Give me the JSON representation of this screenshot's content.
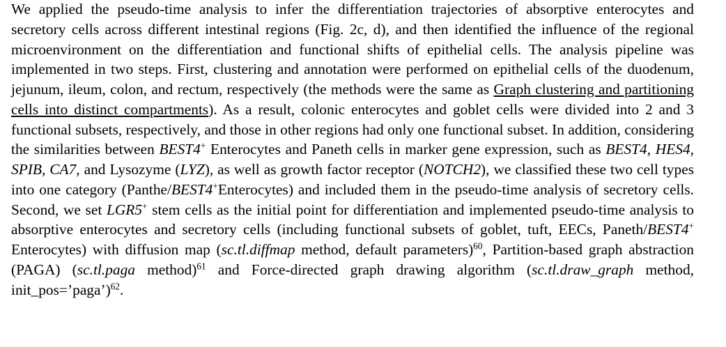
{
  "paragraph": {
    "runs": [
      {
        "text": "We applied the pseudo-time analysis to infer the differentiation trajectories of absorptive enterocytes and secretory cells across different intestinal regions (Fig. 2c, d), and then identified the influence of the regional microenvironment on the differentiation and functional shifts of epithelial cells. The analysis pipeline was implemented in two steps. First, clustering and annotation were performed on epithelial cells of the duodenum, jejunum, ileum, colon, and rectum, respectively (the methods were the same as "
      },
      {
        "text": "Graph clustering and partitioning cells into distinct compartments",
        "format": "link"
      },
      {
        "text": "). As a result, colonic enterocytes and goblet cells were divided into 2 and 3 functional subsets, respectively, and those in other regions had only one functional subset. In addition, considering the similarities between "
      },
      {
        "text": "BEST4",
        "format": "italic"
      },
      {
        "text": "+",
        "format": "sup"
      },
      {
        "text": " Enterocytes and Paneth cells in marker gene expression, such as "
      },
      {
        "text": "BEST4",
        "format": "italic"
      },
      {
        "text": ", "
      },
      {
        "text": "HES4",
        "format": "italic"
      },
      {
        "text": ", "
      },
      {
        "text": "SPIB",
        "format": "italic"
      },
      {
        "text": ", "
      },
      {
        "text": "CA7",
        "format": "italic"
      },
      {
        "text": ", and Lysozyme ("
      },
      {
        "text": "LYZ",
        "format": "italic"
      },
      {
        "text": "), as well as growth factor receptor ("
      },
      {
        "text": "NOTCH2",
        "format": "italic"
      },
      {
        "text": "), we classified these two cell types into one category (Panthe/"
      },
      {
        "text": "BEST4",
        "format": "italic"
      },
      {
        "text": "+",
        "format": "sup"
      },
      {
        "text": "Enterocytes) and included them in the pseudo-time analysis of secretory cells. Second, we set "
      },
      {
        "text": "LGR5",
        "format": "italic"
      },
      {
        "text": "+",
        "format": "sup"
      },
      {
        "text": " stem cells as the initial point for differentiation and implemented pseudo-time analysis to absorptive enterocytes and secretory cells (including functional subsets of goblet, tuft, EECs, Paneth/"
      },
      {
        "text": "BEST4",
        "format": "italic"
      },
      {
        "text": "+",
        "format": "sup"
      },
      {
        "text": " Enterocytes) with diffusion map ("
      },
      {
        "text": "sc.tl.diffmap",
        "format": "italic"
      },
      {
        "text": " method, default parameters)"
      },
      {
        "text": "60",
        "format": "sup"
      },
      {
        "text": ", Partition-based graph abstraction (PAGA) ("
      },
      {
        "text": "sc.tl.paga",
        "format": "italic"
      },
      {
        "text": " method)"
      },
      {
        "text": "61",
        "format": "sup"
      },
      {
        "text": " and Force-directed graph drawing algorithm ("
      },
      {
        "text": "sc.tl.draw_graph",
        "format": "italic"
      },
      {
        "text": " method, init_pos=’paga’)"
      },
      {
        "text": "62",
        "format": "sup"
      },
      {
        "text": "."
      }
    ]
  }
}
